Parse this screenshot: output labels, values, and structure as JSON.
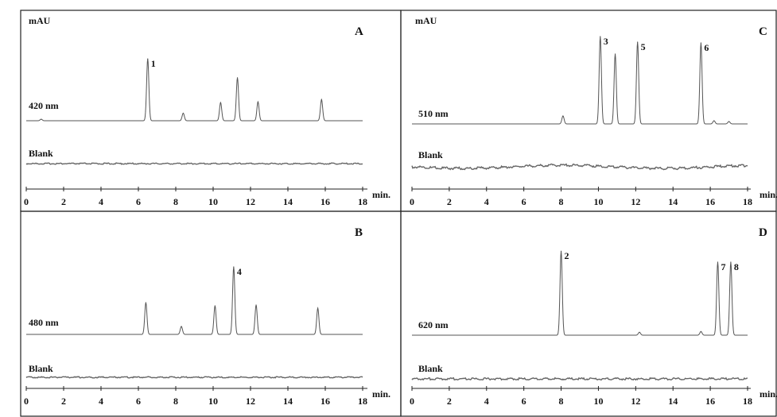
{
  "chart_data": [
    {
      "type": "line",
      "panel_letter": "A",
      "ylabel": "mAU",
      "xlabel": "min.",
      "xlim": [
        0,
        18
      ],
      "x_ticks": [
        "0",
        "2",
        "4",
        "6",
        "8",
        "10",
        "12",
        "14",
        "16",
        "18"
      ],
      "trace_label": "420 nm",
      "blank_label": "Blank",
      "series": [
        {
          "name": "420 nm",
          "peaks": [
            {
              "x": 0.8,
              "y": 2
            },
            {
              "x": 6.5,
              "y": 82,
              "label": "1"
            },
            {
              "x": 8.4,
              "y": 10
            },
            {
              "x": 10.4,
              "y": 24
            },
            {
              "x": 11.3,
              "y": 57
            },
            {
              "x": 12.4,
              "y": 25
            },
            {
              "x": 15.8,
              "y": 28
            }
          ]
        }
      ]
    },
    {
      "type": "line",
      "panel_letter": "B",
      "xlabel": "min.",
      "xlim": [
        0,
        18
      ],
      "x_ticks": [
        "0",
        "2",
        "4",
        "6",
        "8",
        "10",
        "12",
        "14",
        "16",
        "18"
      ],
      "trace_label": "480 nm",
      "blank_label": "Blank",
      "series": [
        {
          "name": "480 nm",
          "peaks": [
            {
              "x": 6.4,
              "y": 40
            },
            {
              "x": 8.3,
              "y": 10
            },
            {
              "x": 10.1,
              "y": 36
            },
            {
              "x": 11.1,
              "y": 85,
              "label": "4"
            },
            {
              "x": 12.3,
              "y": 37
            },
            {
              "x": 15.6,
              "y": 33
            }
          ]
        }
      ]
    },
    {
      "type": "line",
      "panel_letter": "C",
      "ylabel": "mAU",
      "xlabel": "min.",
      "xlim": [
        0,
        18
      ],
      "x_ticks": [
        "0",
        "2",
        "4",
        "6",
        "8",
        "10",
        "12",
        "14",
        "16",
        "18"
      ],
      "trace_label": "510 nm",
      "blank_label": "Blank",
      "series": [
        {
          "name": "510 nm",
          "peaks": [
            {
              "x": 8.1,
              "y": 10
            },
            {
              "x": 10.1,
              "y": 110,
              "label": "3"
            },
            {
              "x": 10.9,
              "y": 88
            },
            {
              "x": 12.1,
              "y": 103,
              "label": "5"
            },
            {
              "x": 15.5,
              "y": 102,
              "label": "6"
            },
            {
              "x": 16.2,
              "y": 4
            },
            {
              "x": 17.0,
              "y": 3
            }
          ]
        }
      ]
    },
    {
      "type": "line",
      "panel_letter": "D",
      "xlabel": "min.",
      "xlim": [
        0,
        18
      ],
      "x_ticks": [
        "0",
        "2",
        "4",
        "6",
        "8",
        "10",
        "12",
        "14",
        "16",
        "18"
      ],
      "trace_label": "620 nm",
      "blank_label": "Blank",
      "series": [
        {
          "name": "620 nm",
          "peaks": [
            {
              "x": 8.0,
              "y": 115,
              "label": "2"
            },
            {
              "x": 12.2,
              "y": 4
            },
            {
              "x": 15.5,
              "y": 5
            },
            {
              "x": 16.4,
              "y": 100,
              "label": "7"
            },
            {
              "x": 17.1,
              "y": 100,
              "label": "8"
            }
          ]
        }
      ]
    }
  ]
}
